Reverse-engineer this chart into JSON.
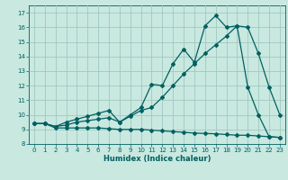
{
  "xlabel": "Humidex (Indice chaleur)",
  "bg_color": "#c8e8e0",
  "grid_color": "#a0c8c0",
  "line_color": "#006060",
  "xlim": [
    -0.5,
    23.5
  ],
  "ylim": [
    8,
    17.5
  ],
  "xticks": [
    0,
    1,
    2,
    3,
    4,
    5,
    6,
    7,
    8,
    9,
    10,
    11,
    12,
    13,
    14,
    15,
    16,
    17,
    18,
    19,
    20,
    21,
    22,
    23
  ],
  "yticks": [
    8,
    9,
    10,
    11,
    12,
    13,
    14,
    15,
    16,
    17
  ],
  "line1_x": [
    0,
    1,
    2,
    3,
    4,
    5,
    6,
    7,
    8,
    9,
    10,
    11,
    12,
    13,
    14,
    15,
    16,
    17,
    18,
    19,
    20,
    21,
    22,
    23
  ],
  "line1_y": [
    9.4,
    9.4,
    9.1,
    9.1,
    9.1,
    9.1,
    9.1,
    9.05,
    9.0,
    9.0,
    9.0,
    8.95,
    8.9,
    8.85,
    8.8,
    8.75,
    8.72,
    8.7,
    8.65,
    8.6,
    8.6,
    8.55,
    8.5,
    8.45
  ],
  "line2_x": [
    0,
    1,
    2,
    3,
    4,
    5,
    6,
    7,
    8,
    9,
    10,
    11,
    12,
    13,
    14,
    15,
    16,
    17,
    18,
    19,
    20,
    21,
    22,
    23
  ],
  "line2_y": [
    9.4,
    9.4,
    9.2,
    9.3,
    9.5,
    9.6,
    9.7,
    9.8,
    9.5,
    9.9,
    10.3,
    10.5,
    11.2,
    12.0,
    12.8,
    13.5,
    14.2,
    14.8,
    15.4,
    16.1,
    16.0,
    14.2,
    11.9,
    10.0
  ],
  "line3_x": [
    0,
    1,
    2,
    3,
    4,
    5,
    6,
    7,
    8,
    9,
    10,
    11,
    12,
    13,
    14,
    15,
    16,
    17,
    18,
    19,
    20,
    21,
    22,
    23
  ],
  "line3_y": [
    9.4,
    9.4,
    9.2,
    9.5,
    9.7,
    9.9,
    10.1,
    10.3,
    9.5,
    10.0,
    10.5,
    12.1,
    12.0,
    13.5,
    14.5,
    13.6,
    16.1,
    16.8,
    16.0,
    16.1,
    11.9,
    10.0,
    8.5,
    8.45
  ]
}
